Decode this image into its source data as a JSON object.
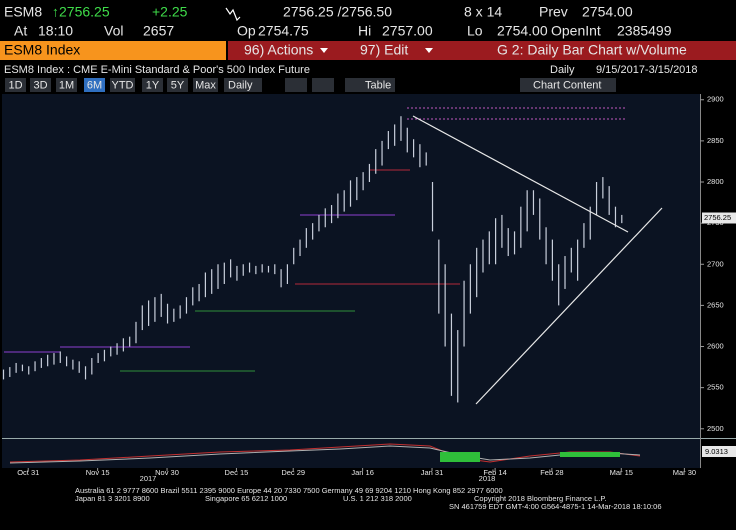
{
  "header": {
    "ticker": "ESM8",
    "last": "↑2756.25",
    "change": "+2.25",
    "bid_ask": "2756.25 /2756.50",
    "size": "8 x 14",
    "prev_label": "Prev",
    "prev": "2754.00",
    "time_label": "At",
    "time": "18:10",
    "vol_label": "Vol",
    "vol": "2657",
    "open_label": "Op",
    "open": "2754.75",
    "high_label": "Hi",
    "high": "2757.00",
    "low_label": "Lo",
    "low": "2754.00",
    "openint_label": "OpenInt",
    "openint": "2385499"
  },
  "menu": {
    "security": "ESM8 Index",
    "actions": "96) Actions",
    "edit": "97) Edit",
    "page": "G 2: Daily Bar Chart w/Volume"
  },
  "chart_header": {
    "description": "ESM8 Index : CME E-Mini Standard & Poor's 500 Index Future",
    "period": "Daily",
    "range": "9/15/2017-3/15/2018"
  },
  "toolbar": {
    "ranges": [
      "1D",
      "3D",
      "1M",
      "6M",
      "YTD",
      "1Y",
      "5Y",
      "Max"
    ],
    "frequency": "Daily",
    "table": "Table",
    "content": "Chart Content"
  },
  "chart_data": {
    "type": "range_bar",
    "color": "#c9cfdc",
    "high": [
      2572,
      2575,
      2580,
      2578,
      2576,
      2582,
      2586,
      2590,
      2592,
      2594,
      2588,
      2584,
      2582,
      2576,
      2586,
      2592,
      2596,
      2600,
      2604,
      2610,
      2612,
      2630,
      2650,
      2656,
      2660,
      2664,
      2652,
      2646,
      2650,
      2660,
      2672,
      2676,
      2690,
      2694,
      2700,
      2702,
      2706,
      2698,
      2700,
      2702,
      2698,
      2700,
      2698,
      2700,
      2694,
      2700,
      2720,
      2730,
      2744,
      2750,
      2760,
      2768,
      2772,
      2786,
      2790,
      2802,
      2806,
      2812,
      2822,
      2840,
      2850,
      2862,
      2870,
      2880,
      2866,
      2852,
      2846,
      2836,
      2800,
      2730,
      2700,
      2640,
      2620,
      2680,
      2700,
      2720,
      2730,
      2740,
      2756,
      2760,
      2744,
      2740,
      2770,
      2790,
      2790,
      2780,
      2745,
      2730,
      2700,
      2710,
      2720,
      2730,
      2750,
      2770,
      2800,
      2806,
      2795,
      2770,
      2760
    ],
    "low": [
      2560,
      2563,
      2568,
      2570,
      2566,
      2570,
      2574,
      2576,
      2578,
      2580,
      2576,
      2572,
      2568,
      2560,
      2566,
      2580,
      2582,
      2588,
      2590,
      2594,
      2600,
      2604,
      2620,
      2625,
      2630,
      2636,
      2628,
      2630,
      2634,
      2640,
      2650,
      2655,
      2660,
      2664,
      2670,
      2676,
      2684,
      2680,
      2686,
      2690,
      2688,
      2690,
      2690,
      2688,
      2672,
      2676,
      2700,
      2710,
      2720,
      2730,
      2740,
      2745,
      2750,
      2756,
      2764,
      2770,
      2778,
      2790,
      2800,
      2810,
      2820,
      2840,
      2844,
      2850,
      2836,
      2830,
      2818,
      2820,
      2740,
      2640,
      2600,
      2540,
      2532,
      2600,
      2640,
      2660,
      2690,
      2700,
      2700,
      2720,
      2710,
      2712,
      2720,
      2740,
      2760,
      2730,
      2700,
      2680,
      2650,
      2670,
      2690,
      2680,
      2720,
      2730,
      2760,
      2780,
      2760,
      2745,
      2750
    ],
    "last_price": 2756.25,
    "xlim": [
      0,
      110
    ],
    "xticks": [
      {
        "value": 4,
        "label": "Oct 31"
      },
      {
        "value": 15,
        "label": "Nov 15"
      },
      {
        "value": 26,
        "label": "Nov 30"
      },
      {
        "value": 37,
        "label": "Dec 15"
      },
      {
        "value": 46,
        "label": "Dec 29"
      },
      {
        "value": 57,
        "label": "Jan 16"
      },
      {
        "value": 68,
        "label": "Jan 31"
      },
      {
        "value": 78,
        "label": "Feb 14"
      },
      {
        "value": 87,
        "label": "Feb 28"
      },
      {
        "value": 98,
        "label": "Mar 15"
      },
      {
        "value": 108,
        "label": "Mar 30"
      }
    ],
    "year_labels": [
      "2017",
      "2018"
    ],
    "ylim": [
      2490,
      2907
    ],
    "yticks": [
      2500,
      2550,
      2600,
      2650,
      2700,
      2750,
      2800,
      2850,
      2900
    ],
    "lower_panel_label": "9.0313"
  },
  "footer": {
    "line1": "Australia 61 2 9777 8600 Brazil 5511 2395 9000 Europe 44 20 7330 7500 Germany 49 69 9204 1210 Hong Kong 852 2977 6000",
    "line2": [
      "Japan 81 3 3201 8900",
      "Singapore 65 6212 1000",
      "U.S. 1 212 318 2000",
      "Copyright 2018 Bloomberg Finance L.P."
    ],
    "line3": "SN 461759 EDT  GMT-4:00 G564-4875-1 14-Mar-2018 18:10:06"
  }
}
